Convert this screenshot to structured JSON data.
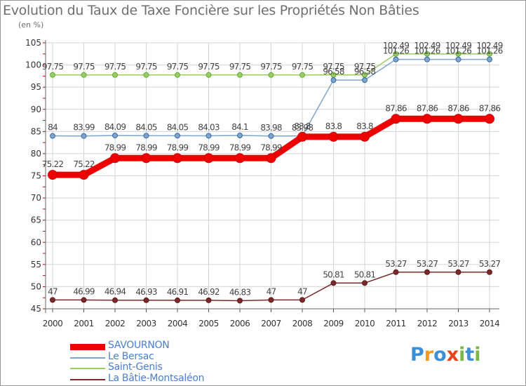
{
  "header": {
    "title": "Evolution du Taux de Taxe Foncière sur les Propriétés Non Bâties",
    "unit": "(en %)"
  },
  "chart_data": {
    "type": "line",
    "title": "Evolution du Taux de Taxe Foncière sur les Propriétés Non Bâties",
    "ylabel": "(en %)",
    "xlabel": "",
    "x": [
      "2000",
      "2001",
      "2002",
      "2003",
      "2004",
      "2005",
      "2006",
      "2007",
      "2008",
      "2009",
      "2010",
      "2011",
      "2012",
      "2013",
      "2014"
    ],
    "yticks": [
      45,
      50,
      55,
      60,
      65,
      70,
      75,
      80,
      85,
      90,
      95,
      100,
      105
    ],
    "ylim": [
      45,
      105
    ],
    "grid": true,
    "legend": "bottom-left",
    "series": [
      {
        "name": "SAVOURNON",
        "color": "#ee0000",
        "values": [
          75.22,
          75.22,
          78.99,
          78.99,
          78.99,
          78.99,
          78.99,
          78.99,
          83.8,
          83.8,
          83.8,
          87.86,
          87.86,
          87.86,
          87.86
        ],
        "labels": [
          "75.22",
          "75.22",
          "78.99",
          "78.99",
          "78.99",
          "78.99",
          "78.99",
          "78.99",
          "83.8",
          "83.8",
          "83.8",
          "87.86",
          "87.86",
          "87.86",
          "87.86"
        ]
      },
      {
        "name": "Le Bersac",
        "color": "#7ea6cc",
        "values": [
          84,
          83.99,
          84.09,
          84.05,
          84.05,
          84.03,
          84.1,
          83.98,
          83.98,
          96.58,
          96.58,
          101.26,
          101.26,
          101.26,
          101.26
        ],
        "labels": [
          "84",
          "83.99",
          "84.09",
          "84.05",
          "84.05",
          "84.03",
          "84.1",
          "83.98",
          "83.98",
          "96.58",
          "96.58",
          "101.26",
          "101.26",
          "101.26",
          "101.26"
        ]
      },
      {
        "name": "Saint-Genis",
        "color": "#99cc66",
        "values": [
          97.75,
          97.75,
          97.75,
          97.75,
          97.75,
          97.75,
          97.75,
          97.75,
          97.75,
          97.75,
          97.75,
          102.49,
          102.49,
          102.49,
          102.49
        ],
        "labels": [
          "97.75",
          "97.75",
          "97.75",
          "97.75",
          "97.75",
          "97.75",
          "97.75",
          "97.75",
          "97.75",
          "97.75",
          "97.75",
          "102.49",
          "102.49",
          "102.49",
          "102.49"
        ]
      },
      {
        "name": "La Bâtie-Montsaléon",
        "color": "#7a2a2a",
        "values": [
          47,
          46.99,
          46.94,
          46.93,
          46.91,
          46.92,
          46.83,
          47,
          47,
          50.81,
          50.81,
          53.27,
          53.27,
          53.27,
          53.27
        ],
        "labels": [
          "47",
          "46.99",
          "46.94",
          "46.93",
          "46.91",
          "46.92",
          "46.83",
          "47",
          "47",
          "50.81",
          "50.81",
          "53.27",
          "53.27",
          "53.27",
          "53.27"
        ]
      }
    ]
  },
  "logo": {
    "text": "Proxiti",
    "letters": [
      "P",
      "r",
      "o",
      "x",
      "i",
      "t",
      "i"
    ],
    "colors": [
      "#3d8fd8",
      "#f29a1d",
      "#3d8fd8",
      "#e8421a",
      "#7ab648",
      "#3d8fd8",
      "#7ab648"
    ]
  }
}
